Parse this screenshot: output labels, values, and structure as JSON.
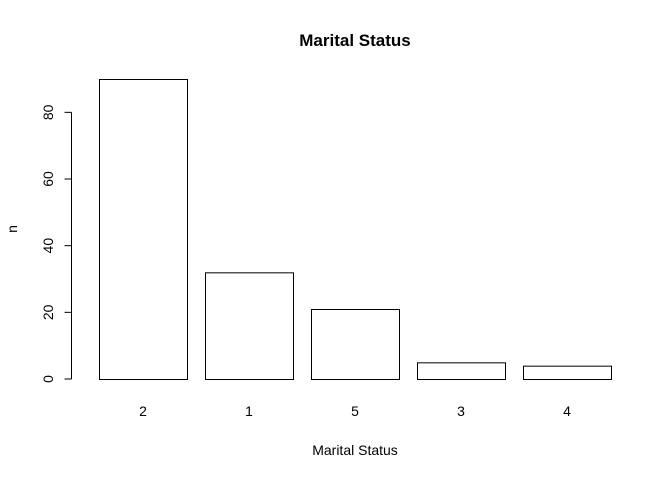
{
  "chart_data": {
    "type": "bar",
    "title": "Marital Status",
    "xlabel": "Marital Status",
    "ylabel": "n",
    "categories": [
      "2",
      "1",
      "5",
      "3",
      "4"
    ],
    "values": [
      90,
      32,
      21,
      5,
      4
    ],
    "ylim": [
      0,
      90
    ],
    "yticks": [
      0,
      20,
      40,
      60,
      80
    ],
    "grid": false,
    "bar_fill": "#ffffff",
    "bar_stroke": "#000000"
  }
}
